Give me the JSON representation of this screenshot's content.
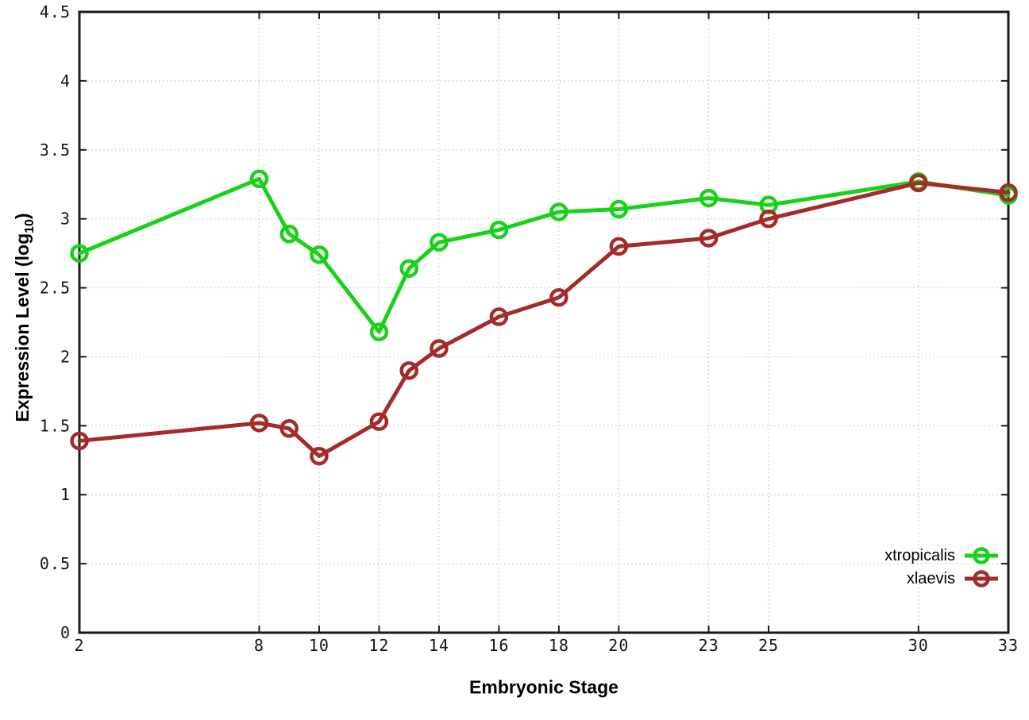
{
  "chart_data": {
    "type": "line",
    "title": "",
    "xlabel": "Embryonic Stage",
    "ylabel": {
      "prefix": "Expression Level (log",
      "sub": "10",
      "suffix": ")"
    },
    "xlim": [
      2,
      33
    ],
    "ylim": [
      0,
      4.5
    ],
    "x_ticks": [
      2,
      8,
      10,
      12,
      14,
      16,
      18,
      20,
      23,
      25,
      30,
      33
    ],
    "y_ticks": [
      0,
      0.5,
      1,
      1.5,
      2,
      2.5,
      3,
      3.5,
      4,
      4.5
    ],
    "grid": "dotted gray, horizontal and vertical at every tick",
    "legend_position": "inside bottom-right",
    "x": [
      2,
      8,
      9,
      10,
      12,
      13,
      14,
      16,
      18,
      20,
      23,
      25,
      30,
      33
    ],
    "series": [
      {
        "name": "xtropicalis",
        "color": "#19d119",
        "values": [
          2.75,
          3.29,
          2.89,
          2.74,
          2.18,
          2.64,
          2.83,
          2.92,
          3.05,
          3.07,
          3.15,
          3.1,
          3.27,
          3.17
        ]
      },
      {
        "name": "xlaevis",
        "color": "#a52a2a",
        "values": [
          1.39,
          1.52,
          1.48,
          1.28,
          1.53,
          1.9,
          2.06,
          2.29,
          2.43,
          2.8,
          2.86,
          3.0,
          3.26,
          3.19
        ]
      }
    ],
    "colors": {
      "axis": "#1a1a1a",
      "grid": "#c3c3c3",
      "background": "#ffffff"
    }
  }
}
